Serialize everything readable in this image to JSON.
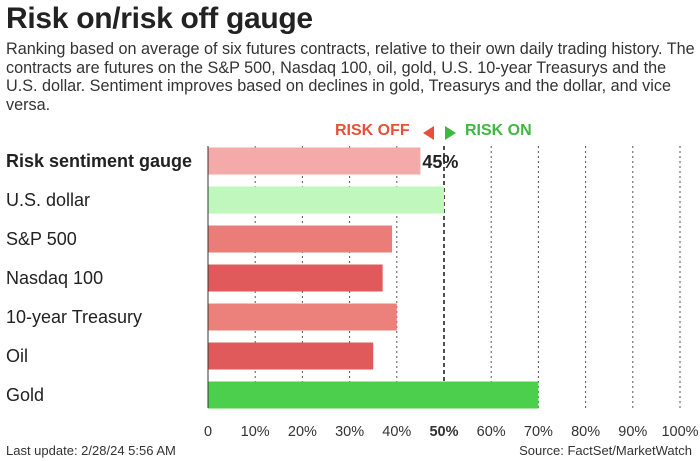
{
  "title": "Risk on/risk off gauge",
  "subtitle": "Ranking based on average of six futures contracts, relative to their own daily trading history. The contracts are futures on the S&P 500, Nasdaq 100, oil, gold, U.S. 10-year Treasurys and the U.S. dollar. Sentiment improves based on declines in gold, Treasurys and the dollar, and vice versa.",
  "legend": {
    "risk_off": "RISK OFF",
    "risk_on": "RISK ON",
    "risk_off_color": "#e8503c",
    "risk_on_color": "#3fb83f"
  },
  "footer": {
    "last_update": "Last update: 2/28/24 5:56 AM",
    "source": "Source: FactSet/MarketWatch"
  },
  "chart_data": {
    "type": "bar",
    "orientation": "horizontal",
    "categories": [
      "Risk sentiment gauge",
      "U.S. dollar",
      "S&P 500",
      "Nasdaq 100",
      "10-year Treasury",
      "Oil",
      "Gold"
    ],
    "values": [
      45,
      50,
      39,
      37,
      40,
      35,
      70
    ],
    "colors": [
      "#f4aaa8",
      "#bff7bd",
      "#ea7d78",
      "#e0595b",
      "#ec807b",
      "#e0595b",
      "#4ccf4c"
    ],
    "value_labels": [
      "45%",
      "",
      "",
      "",
      "",
      "",
      ""
    ],
    "xlim": [
      0,
      100
    ],
    "xticks": [
      "0",
      "10%",
      "20%",
      "30%",
      "40%",
      "50%",
      "60%",
      "70%",
      "80%",
      "90%",
      "100%"
    ],
    "bold_tick": "50%",
    "grid": "dashed-vertical"
  }
}
